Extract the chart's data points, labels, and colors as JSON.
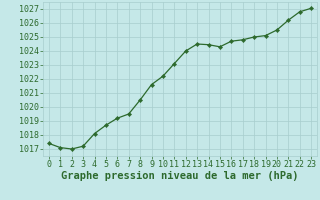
{
  "x": [
    0,
    1,
    2,
    3,
    4,
    5,
    6,
    7,
    8,
    9,
    10,
    11,
    12,
    13,
    14,
    15,
    16,
    17,
    18,
    19,
    20,
    21,
    22,
    23
  ],
  "y": [
    1017.4,
    1017.1,
    1017.0,
    1017.2,
    1018.1,
    1018.7,
    1019.2,
    1019.5,
    1020.5,
    1021.6,
    1022.2,
    1023.1,
    1024.0,
    1024.5,
    1024.45,
    1024.3,
    1024.7,
    1024.8,
    1025.0,
    1025.1,
    1025.5,
    1026.2,
    1026.8,
    1027.05
  ],
  "line_color": "#2d6a2d",
  "marker": "D",
  "marker_size": 2.2,
  "linewidth": 0.9,
  "ylim": [
    1016.5,
    1027.5
  ],
  "xlim": [
    -0.5,
    23.5
  ],
  "yticks": [
    1017,
    1018,
    1019,
    1020,
    1021,
    1022,
    1023,
    1024,
    1025,
    1026,
    1027
  ],
  "xtick_labels": [
    "0",
    "1",
    "2",
    "3",
    "4",
    "5",
    "6",
    "7",
    "8",
    "9",
    "10",
    "11",
    "12",
    "13",
    "14",
    "15",
    "16",
    "17",
    "18",
    "19",
    "20",
    "21",
    "22",
    "23"
  ],
  "xlabel": "Graphe pression niveau de la mer (hPa)",
  "xlabel_fontsize": 7.5,
  "xlabel_fontweight": "bold",
  "xlabel_color": "#2d6a2d",
  "tick_fontsize": 6.0,
  "tick_color": "#2d6a2d",
  "background_color": "#c5e8e8",
  "grid_color": "#a8cece",
  "grid_linestyle": "-",
  "grid_linewidth": 0.5
}
